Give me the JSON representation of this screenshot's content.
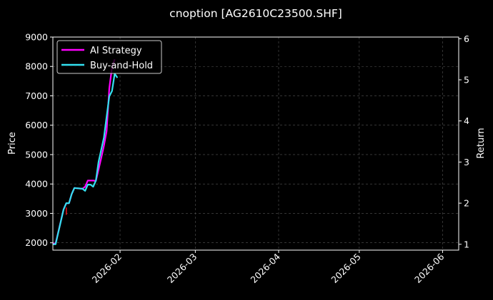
{
  "chart_data": {
    "type": "line",
    "title": "cnoption [AG2610C23500.SHF]",
    "ylabel_left": "Price",
    "ylabel_right": "Return",
    "x_range": [
      "2026-01-07",
      "2026-06-07"
    ],
    "x_ticks": [
      "2026-02",
      "2026-03",
      "2026-04",
      "2026-05",
      "2026-06"
    ],
    "x_tick_dates": [
      "2026-02-01",
      "2026-03-01",
      "2026-04-01",
      "2026-05-01",
      "2026-06-01"
    ],
    "ylim_left": [
      1750,
      9000
    ],
    "yticks_left": [
      2000,
      3000,
      4000,
      5000,
      6000,
      7000,
      8000,
      9000
    ],
    "ylim_right": [
      0.858,
      6.04
    ],
    "yticks_right": [
      1,
      2,
      3,
      4,
      5,
      6
    ],
    "grid": true,
    "legend_placement": "top-left",
    "price_series": {
      "color": "#e8141e",
      "points": [
        [
          "2026-01-12",
          2950
        ],
        [
          "2026-01-12",
          3200
        ]
      ]
    },
    "series": [
      {
        "name": "AI Strategy",
        "color": "#ff00ff",
        "axis": "right",
        "points": [
          [
            "2026-01-07",
            1.02
          ],
          [
            "2026-01-08",
            1.02
          ],
          [
            "2026-01-11",
            1.85
          ],
          [
            "2026-01-12",
            2.0
          ],
          [
            "2026-01-13",
            2.0
          ],
          [
            "2026-01-14",
            2.22
          ],
          [
            "2026-01-15",
            2.37
          ],
          [
            "2026-01-18",
            2.35
          ],
          [
            "2026-01-19",
            2.4
          ],
          [
            "2026-01-20",
            2.55
          ],
          [
            "2026-01-21",
            2.55
          ],
          [
            "2026-01-22",
            2.55
          ],
          [
            "2026-01-23",
            2.54
          ],
          [
            "2026-01-25",
            3.1
          ],
          [
            "2026-01-26",
            3.4
          ],
          [
            "2026-01-27",
            3.75
          ],
          [
            "2026-01-28",
            4.8
          ],
          [
            "2026-01-29",
            5.3
          ],
          [
            "2026-01-30",
            5.5
          ]
        ]
      },
      {
        "name": "Buy-and-Hold",
        "color": "#33e0f0",
        "axis": "right",
        "points": [
          [
            "2026-01-07",
            1.0
          ],
          [
            "2026-01-08",
            1.0
          ],
          [
            "2026-01-11",
            1.85
          ],
          [
            "2026-01-12",
            2.0
          ],
          [
            "2026-01-13",
            2.0
          ],
          [
            "2026-01-14",
            2.22
          ],
          [
            "2026-01-15",
            2.37
          ],
          [
            "2026-01-18",
            2.35
          ],
          [
            "2026-01-19",
            2.3
          ],
          [
            "2026-01-20",
            2.45
          ],
          [
            "2026-01-21",
            2.45
          ],
          [
            "2026-01-22",
            2.4
          ],
          [
            "2026-01-23",
            2.55
          ],
          [
            "2026-01-24",
            3.0
          ],
          [
            "2026-01-26",
            3.6
          ],
          [
            "2026-01-27",
            4.1
          ],
          [
            "2026-01-28",
            4.6
          ],
          [
            "2026-01-29",
            4.73
          ],
          [
            "2026-01-30",
            5.15
          ],
          [
            "2026-01-31",
            5.05
          ]
        ]
      }
    ]
  }
}
